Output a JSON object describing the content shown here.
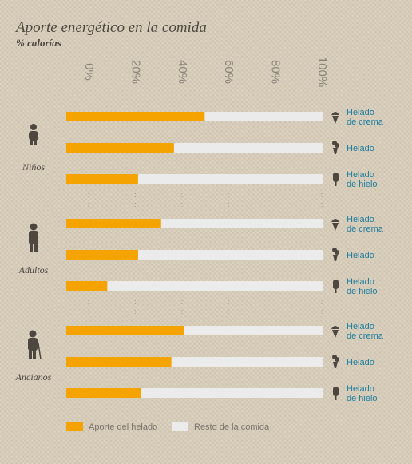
{
  "title": "Aporte energético en la comida",
  "subtitle": "% calorías",
  "colors": {
    "primary": "#f4a300",
    "rest": "#ebebeb",
    "label": "#1e7fa0"
  },
  "chart_data": {
    "type": "bar",
    "orientation": "horizontal",
    "stacked": true,
    "xlim": [
      0,
      100
    ],
    "ticks": [
      "0%",
      "20%",
      "40%",
      "60%",
      "80%",
      "100%"
    ],
    "tick_values": [
      0,
      20,
      40,
      60,
      80,
      100
    ],
    "legend": [
      "Aporte del helado",
      "Resto de la comida"
    ],
    "legend_position": "bottom-left",
    "groups": [
      {
        "name": "Niños",
        "icon": "child-icon",
        "bars": [
          {
            "product": [
              "Helado",
              "de crema"
            ],
            "icon": "cone-icon",
            "value": 54
          },
          {
            "product": [
              "Helado"
            ],
            "icon": "cup-icon",
            "value": 42
          },
          {
            "product": [
              "Helado",
              "de hielo"
            ],
            "icon": "popsicle-icon",
            "value": 28
          }
        ]
      },
      {
        "name": "Adultos",
        "icon": "adult-icon",
        "bars": [
          {
            "product": [
              "Helado",
              "de crema"
            ],
            "icon": "cone-icon",
            "value": 37
          },
          {
            "product": [
              "Helado"
            ],
            "icon": "cup-icon",
            "value": 28
          },
          {
            "product": [
              "Helado",
              "de hielo"
            ],
            "icon": "popsicle-icon",
            "value": 16
          }
        ]
      },
      {
        "name": "Ancianos",
        "icon": "elderly-icon",
        "bars": [
          {
            "product": [
              "Helado",
              "de crema"
            ],
            "icon": "cone-icon",
            "value": 46
          },
          {
            "product": [
              "Helado"
            ],
            "icon": "cup-icon",
            "value": 41
          },
          {
            "product": [
              "Helado",
              "de hielo"
            ],
            "icon": "popsicle-icon",
            "value": 29
          }
        ]
      }
    ]
  }
}
